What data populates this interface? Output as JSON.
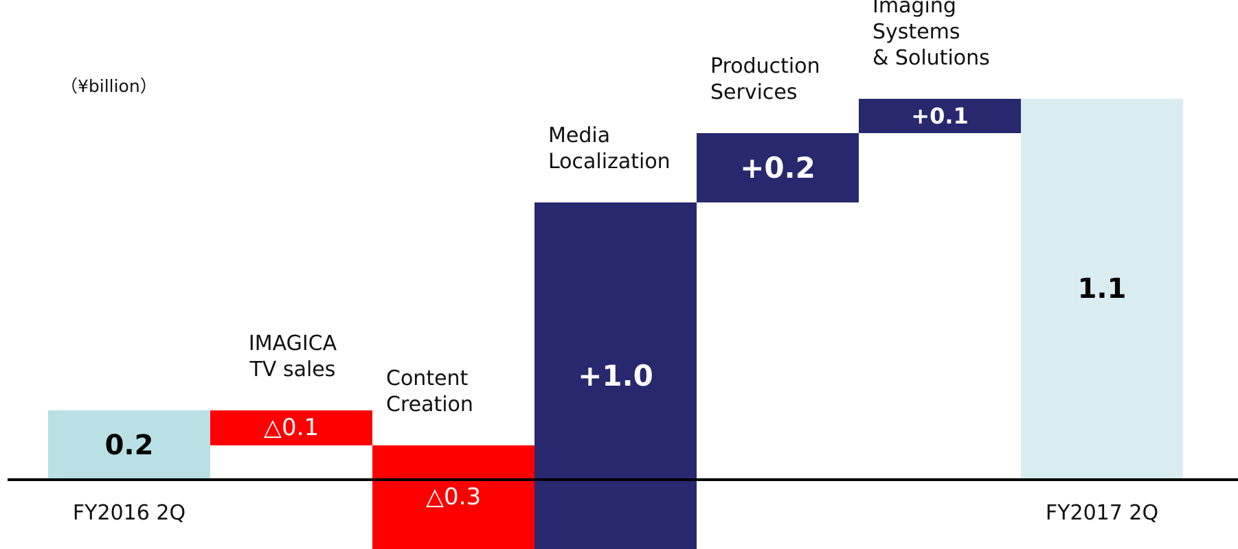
{
  "chart_data": {
    "type": "waterfall",
    "unit_label": "（¥billion）",
    "categories": [
      "FY2016 2Q",
      "IMAGICA TV sales",
      "Content Creation",
      "Media Localization",
      "Production Services",
      "Imaging Systems & Solutions",
      "FY2017 2Q"
    ],
    "measure": [
      "absolute",
      "relative",
      "relative",
      "relative",
      "relative",
      "relative",
      "total"
    ],
    "values": [
      0.2,
      -0.1,
      -0.3,
      1.0,
      0.2,
      0.1,
      1.1
    ],
    "value_labels": [
      "0.2",
      "△0.1",
      "△0.3",
      "+1.0",
      "+0.2",
      "+0.1",
      "1.1"
    ],
    "colors": {
      "start": "#b9e0e5",
      "decrease": "#ff0000",
      "increase": "#28286e",
      "end": "#d9edf0"
    }
  }
}
